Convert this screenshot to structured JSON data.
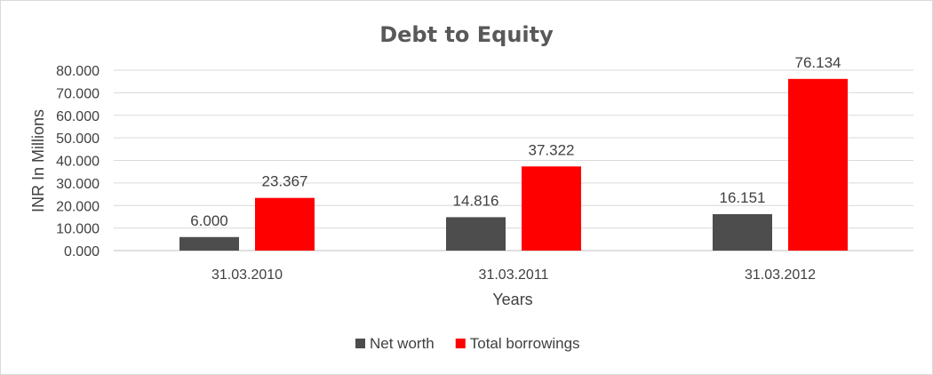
{
  "chart_data": {
    "type": "bar",
    "title": "Debt to Equity",
    "xlabel": "Years",
    "ylabel": "INR In Millions",
    "categories": [
      "31.03.2010",
      "31.03.2011",
      "31.03.2012"
    ],
    "series": [
      {
        "name": "Net worth",
        "color": "#4d4d4d",
        "values": [
          6.0,
          14.816,
          16.151
        ],
        "labels": [
          "6.000",
          "14.816",
          "16.151"
        ]
      },
      {
        "name": "Total borrowings",
        "color": "#ff0000",
        "values": [
          23.367,
          37.322,
          76.134
        ],
        "labels": [
          "23.367",
          "37.322",
          "76.134"
        ]
      }
    ],
    "ylim": [
      0,
      80
    ],
    "yticks": [
      "0.000",
      "10.000",
      "20.000",
      "30.000",
      "40.000",
      "50.000",
      "60.000",
      "70.000",
      "80.000"
    ],
    "grid": true,
    "legend": "bottom"
  }
}
